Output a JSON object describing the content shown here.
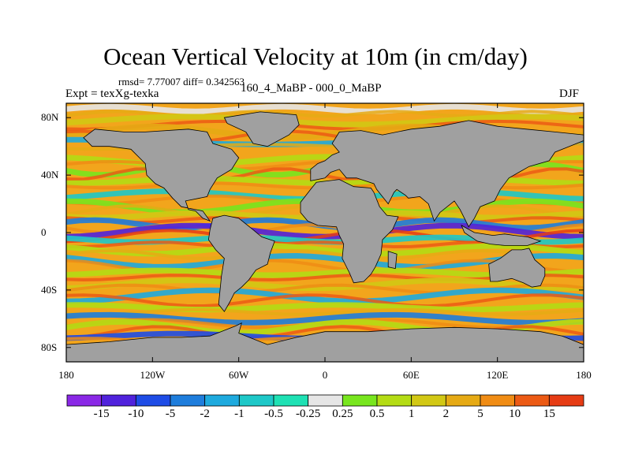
{
  "title": "Ocean Vertical Velocity at 10m (in cm/day)",
  "subtitles": {
    "stats": "rmsd= 7.77007 diff= 0.342563",
    "experiment": "Expt = texXg-texka",
    "comparison": "160_4_MaBP - 000_0_MaBP",
    "season": "DJF"
  },
  "colors": {
    "land": "#a0a0a0",
    "ocean_base": "#f2a51c",
    "frame": "#000000"
  },
  "chart_data": {
    "type": "heatmap",
    "projection": "cylindrical-equidistant",
    "x_range": [
      -180,
      180
    ],
    "y_range": [
      -90,
      90
    ],
    "xaxis": {
      "ticks": [
        -180,
        -120,
        -60,
        0,
        60,
        120,
        180
      ],
      "tick_labels": [
        "180",
        "120W",
        "60W",
        "0",
        "60E",
        "120E",
        "180"
      ]
    },
    "yaxis": {
      "ticks": [
        80,
        40,
        0,
        -40,
        -80
      ],
      "tick_labels": [
        "80N",
        "40N",
        "0",
        "40S",
        "80S"
      ]
    },
    "colorbar": {
      "colors": [
        "#8a28e6",
        "#5022dc",
        "#1e4ce6",
        "#1e7ddc",
        "#1eaade",
        "#1ec8c8",
        "#1ee1b4",
        "#e6e6e6",
        "#78e61e",
        "#b4dc14",
        "#d2c814",
        "#e6aa14",
        "#f08c14",
        "#ec5a14",
        "#e63c14"
      ],
      "boundary_labels": [
        "-15",
        "-10",
        "-5",
        "-2",
        "-1",
        "-0.5",
        "-0.25",
        "0.25",
        "0.5",
        "1",
        "2",
        "5",
        "10",
        "15"
      ]
    },
    "land_masses": [
      {
        "name": "north-america",
        "lonlat": [
          [
            -168,
            66
          ],
          [
            -160,
            72
          ],
          [
            -140,
            70
          ],
          [
            -125,
            70
          ],
          [
            -95,
            72
          ],
          [
            -82,
            70
          ],
          [
            -78,
            62
          ],
          [
            -65,
            58
          ],
          [
            -60,
            52
          ],
          [
            -65,
            44
          ],
          [
            -75,
            38
          ],
          [
            -80,
            30
          ],
          [
            -82,
            25
          ],
          [
            -97,
            22
          ],
          [
            -95,
            16
          ],
          [
            -90,
            15
          ],
          [
            -85,
            10
          ],
          [
            -80,
            8
          ],
          [
            -85,
            15
          ],
          [
            -100,
            18
          ],
          [
            -106,
            24
          ],
          [
            -112,
            31
          ],
          [
            -118,
            34
          ],
          [
            -124,
            40
          ],
          [
            -125,
            48
          ],
          [
            -135,
            58
          ],
          [
            -150,
            60
          ],
          [
            -162,
            60
          ]
        ]
      },
      {
        "name": "greenland",
        "lonlat": [
          [
            -70,
            80
          ],
          [
            -45,
            84
          ],
          [
            -20,
            82
          ],
          [
            -18,
            75
          ],
          [
            -25,
            68
          ],
          [
            -40,
            60
          ],
          [
            -50,
            62
          ],
          [
            -55,
            70
          ],
          [
            -68,
            76
          ]
        ]
      },
      {
        "name": "south-america",
        "lonlat": [
          [
            -78,
            10
          ],
          [
            -70,
            12
          ],
          [
            -60,
            10
          ],
          [
            -50,
            2
          ],
          [
            -44,
            -3
          ],
          [
            -35,
            -6
          ],
          [
            -38,
            -14
          ],
          [
            -40,
            -22
          ],
          [
            -48,
            -26
          ],
          [
            -53,
            -33
          ],
          [
            -58,
            -38
          ],
          [
            -63,
            -42
          ],
          [
            -66,
            -48
          ],
          [
            -70,
            -55
          ],
          [
            -74,
            -50
          ],
          [
            -73,
            -40
          ],
          [
            -72,
            -30
          ],
          [
            -70,
            -18
          ],
          [
            -76,
            -12
          ],
          [
            -81,
            -5
          ],
          [
            -80,
            2
          ]
        ]
      },
      {
        "name": "eurasia",
        "lonlat": [
          [
            -10,
            36
          ],
          [
            -10,
            44
          ],
          [
            -5,
            48
          ],
          [
            0,
            50
          ],
          [
            5,
            54
          ],
          [
            10,
            56
          ],
          [
            5,
            62
          ],
          [
            10,
            70
          ],
          [
            25,
            71
          ],
          [
            40,
            68
          ],
          [
            60,
            72
          ],
          [
            80,
            74
          ],
          [
            100,
            78
          ],
          [
            120,
            74
          ],
          [
            140,
            72
          ],
          [
            160,
            70
          ],
          [
            180,
            68
          ],
          [
            180,
            64
          ],
          [
            170,
            60
          ],
          [
            160,
            56
          ],
          [
            156,
            50
          ],
          [
            142,
            46
          ],
          [
            135,
            42
          ],
          [
            128,
            38
          ],
          [
            122,
            30
          ],
          [
            118,
            22
          ],
          [
            108,
            18
          ],
          [
            104,
            10
          ],
          [
            100,
            4
          ],
          [
            98,
            8
          ],
          [
            94,
            16
          ],
          [
            90,
            22
          ],
          [
            80,
            14
          ],
          [
            76,
            8
          ],
          [
            72,
            20
          ],
          [
            66,
            25
          ],
          [
            58,
            24
          ],
          [
            56,
            26
          ],
          [
            50,
            30
          ],
          [
            48,
            28
          ],
          [
            44,
            20
          ],
          [
            36,
            30
          ],
          [
            34,
            34
          ],
          [
            28,
            36
          ],
          [
            22,
            38
          ],
          [
            15,
            38
          ],
          [
            10,
            44
          ],
          [
            4,
            42
          ],
          [
            0,
            38
          ]
        ]
      },
      {
        "name": "africa",
        "lonlat": [
          [
            -17,
            21
          ],
          [
            -10,
            30
          ],
          [
            -6,
            35
          ],
          [
            10,
            37
          ],
          [
            20,
            32
          ],
          [
            32,
            31
          ],
          [
            34,
            28
          ],
          [
            38,
            18
          ],
          [
            43,
            12
          ],
          [
            51,
            11
          ],
          [
            47,
            2
          ],
          [
            40,
            -5
          ],
          [
            39,
            -15
          ],
          [
            35,
            -24
          ],
          [
            32,
            -29
          ],
          [
            27,
            -34
          ],
          [
            20,
            -35
          ],
          [
            17,
            -28
          ],
          [
            12,
            -18
          ],
          [
            13,
            -8
          ],
          [
            10,
            -2
          ],
          [
            8,
            4
          ],
          [
            -5,
            5
          ],
          [
            -12,
            8
          ],
          [
            -17,
            14
          ]
        ]
      },
      {
        "name": "madagascar",
        "lonlat": [
          [
            44,
            -13
          ],
          [
            50,
            -15
          ],
          [
            49,
            -25
          ],
          [
            44,
            -24
          ]
        ]
      },
      {
        "name": "maritime-continent",
        "lonlat": [
          [
            95,
            5
          ],
          [
            104,
            0
          ],
          [
            117,
            -2
          ],
          [
            125,
            -1
          ],
          [
            132,
            -2
          ],
          [
            141,
            -3
          ],
          [
            150,
            -6
          ],
          [
            141,
            -9
          ],
          [
            125,
            -9
          ],
          [
            115,
            -8
          ],
          [
            106,
            -6
          ],
          [
            97,
            0
          ]
        ]
      },
      {
        "name": "australia",
        "lonlat": [
          [
            114,
            -22
          ],
          [
            122,
            -18
          ],
          [
            130,
            -12
          ],
          [
            137,
            -12
          ],
          [
            142,
            -11
          ],
          [
            146,
            -19
          ],
          [
            153,
            -25
          ],
          [
            153,
            -30
          ],
          [
            150,
            -37
          ],
          [
            144,
            -38
          ],
          [
            138,
            -35
          ],
          [
            130,
            -32
          ],
          [
            120,
            -34
          ],
          [
            115,
            -34
          ]
        ]
      },
      {
        "name": "antarctica",
        "lonlat": [
          [
            -180,
            -90
          ],
          [
            -180,
            -78
          ],
          [
            -150,
            -76
          ],
          [
            -120,
            -73
          ],
          [
            -100,
            -73
          ],
          [
            -80,
            -72
          ],
          [
            -62,
            -65
          ],
          [
            -58,
            -63
          ],
          [
            -60,
            -70
          ],
          [
            -40,
            -78
          ],
          [
            -20,
            -73
          ],
          [
            0,
            -69
          ],
          [
            30,
            -69
          ],
          [
            60,
            -67
          ],
          [
            90,
            -66
          ],
          [
            120,
            -67
          ],
          [
            150,
            -69
          ],
          [
            165,
            -72
          ],
          [
            180,
            -78
          ],
          [
            180,
            -90
          ]
        ]
      }
    ]
  }
}
